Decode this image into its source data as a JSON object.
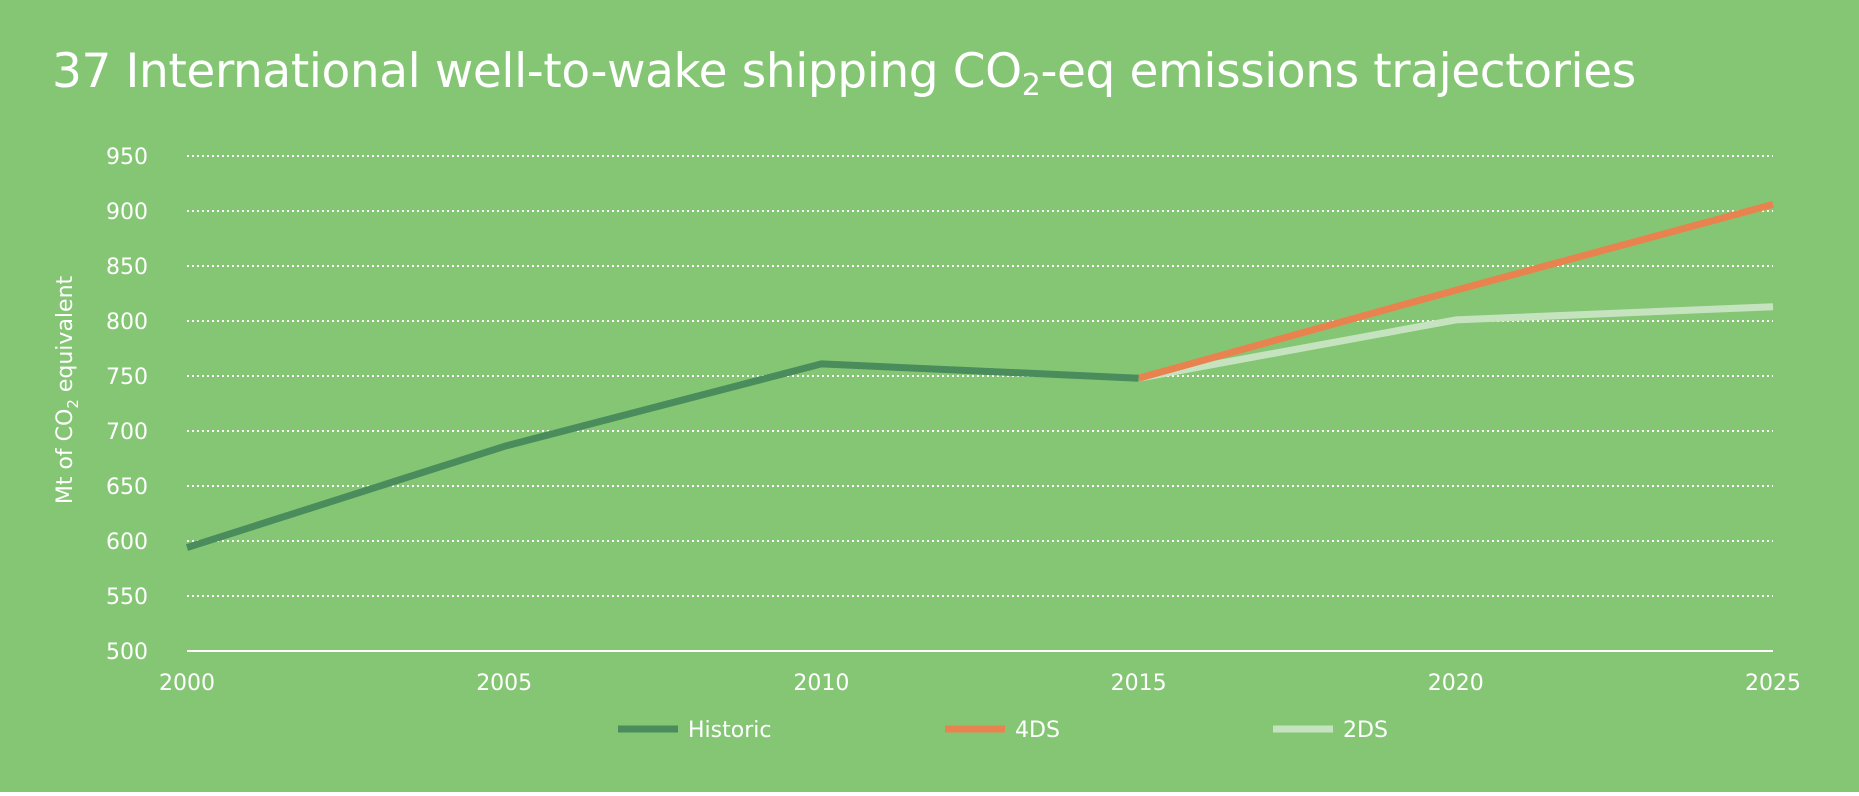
{
  "chart_data": {
    "type": "line",
    "title_main": "37 International well-to-wake shipping CO",
    "title_subscript": "2",
    "title_suffix": "-eq emissions trajectories",
    "ylabel_prefix": "Mt of CO",
    "ylabel_subscript": "2",
    "ylabel_suffix": " equivalent",
    "xlabel": "",
    "xlim": [
      2000,
      2025
    ],
    "ylim": [
      500,
      950
    ],
    "x_ticks": [
      "2000",
      "2005",
      "2010",
      "2015",
      "2020",
      "2025"
    ],
    "y_ticks": [
      "500",
      "550",
      "600",
      "650",
      "700",
      "750",
      "800",
      "850",
      "900",
      "950"
    ],
    "grid": true,
    "legend_position": "bottom-center",
    "series": [
      {
        "name": "Historic",
        "color": "#4a8c5c",
        "points": [
          [
            2000,
            594
          ],
          [
            2005,
            686
          ],
          [
            2010,
            761
          ],
          [
            2015,
            748
          ]
        ]
      },
      {
        "name": "4DS",
        "color": "#e8834f",
        "points": [
          [
            2015,
            748
          ],
          [
            2020,
            828
          ],
          [
            2025,
            906
          ]
        ]
      },
      {
        "name": "2DS",
        "color": "#c6e3bf",
        "points": [
          [
            2015,
            748
          ],
          [
            2020,
            801
          ],
          [
            2025,
            813
          ]
        ]
      }
    ]
  }
}
